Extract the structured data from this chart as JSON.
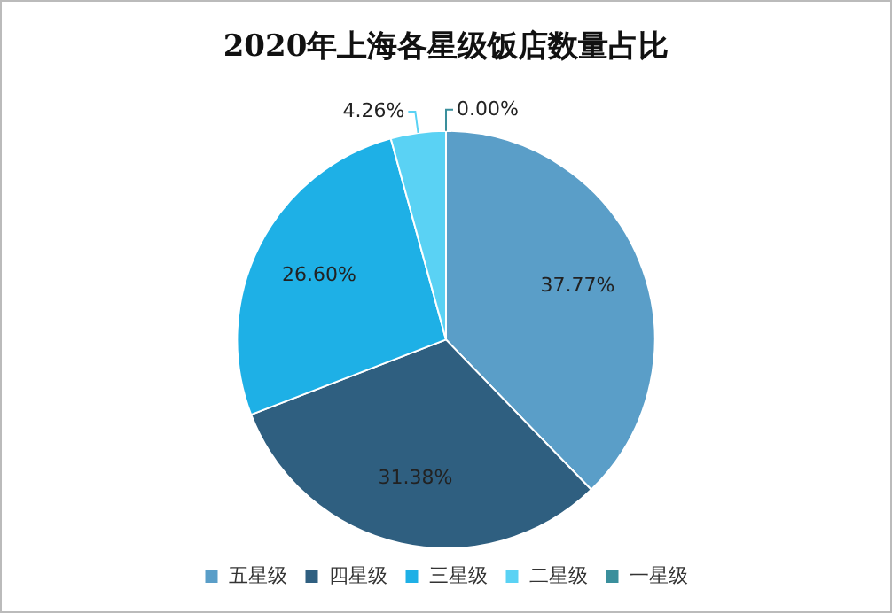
{
  "chart_data": {
    "type": "pie",
    "title": "2020年上海各星级饭店数量占比",
    "categories": [
      "五星级",
      "四星级",
      "三星级",
      "二星级",
      "一星级"
    ],
    "values": [
      37.77,
      31.38,
      26.6,
      4.26,
      0.0
    ],
    "value_labels": [
      "37.77%",
      "31.38%",
      "26.60%",
      "4.26%",
      "0.00%"
    ],
    "colors": [
      "#5a9ec8",
      "#2f5f80",
      "#1eb0e6",
      "#5ad2f4",
      "#3a8f9c"
    ],
    "legend": "bottom"
  }
}
